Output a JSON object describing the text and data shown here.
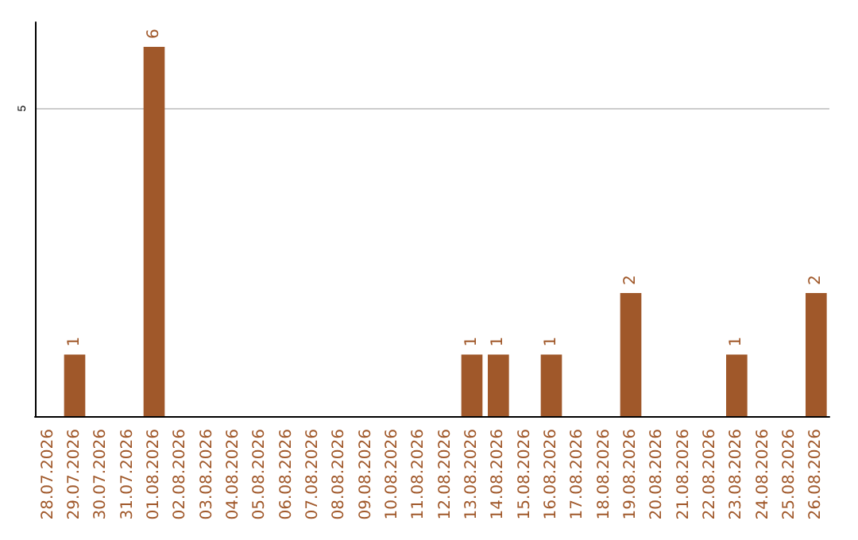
{
  "chart_data": {
    "type": "bar",
    "categories": [
      "28.07.2026",
      "29.07.2026",
      "30.07.2026",
      "31.07.2026",
      "01.08.2026",
      "02.08.2026",
      "03.08.2026",
      "04.08.2026",
      "05.08.2026",
      "06.08.2026",
      "07.08.2026",
      "08.08.2026",
      "09.08.2026",
      "10.08.2026",
      "11.08.2026",
      "12.08.2026",
      "13.08.2026",
      "14.08.2026",
      "15.08.2026",
      "16.08.2026",
      "17.08.2026",
      "18.08.2026",
      "19.08.2026",
      "20.08.2026",
      "21.08.2026",
      "22.08.2026",
      "23.08.2026",
      "24.08.2026",
      "25.08.2026",
      "26.08.2026"
    ],
    "values": [
      0,
      1,
      0,
      0,
      6,
      0,
      0,
      0,
      0,
      0,
      0,
      0,
      0,
      0,
      0,
      0,
      1,
      1,
      0,
      1,
      0,
      0,
      2,
      0,
      0,
      0,
      1,
      0,
      0,
      2
    ],
    "value_labels": [
      null,
      "1",
      null,
      null,
      "6",
      null,
      null,
      null,
      null,
      null,
      null,
      null,
      null,
      null,
      null,
      null,
      "1",
      "1",
      null,
      "1",
      null,
      null,
      "2",
      null,
      null,
      null,
      "1",
      null,
      null,
      "2"
    ],
    "color": "#a0582a",
    "ylim": [
      0,
      6.4
    ],
    "yticks": [
      5
    ],
    "grid": "y"
  }
}
